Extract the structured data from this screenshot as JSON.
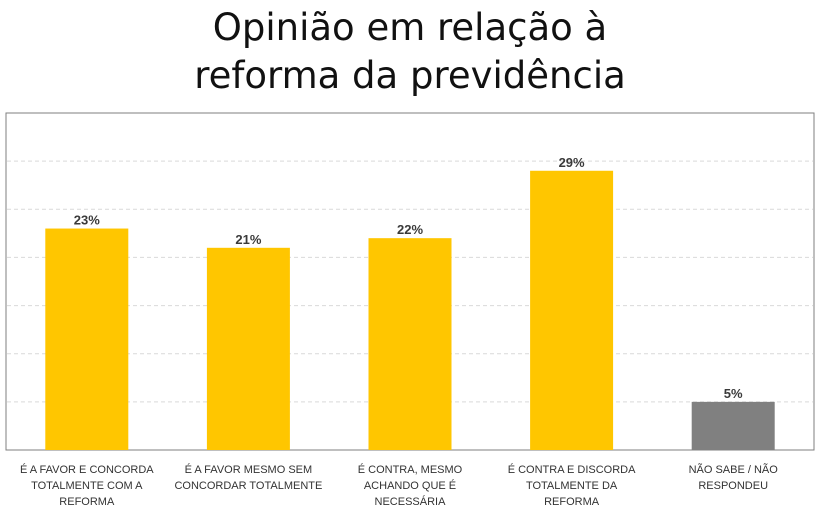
{
  "chart_data": {
    "type": "bar",
    "title_lines": [
      "Opinião em relação à",
      "reforma da previdência"
    ],
    "categories": [
      [
        "É A FAVOR  E CONCORDA",
        "TOTALMENTE COM A",
        "REFORMA"
      ],
      [
        "É A FAVOR MESMO SEM",
        "CONCORDAR TOTALMENTE"
      ],
      [
        "É CONTRA, MESMO",
        "ACHANDO QUE É",
        "NECESSÁRIA"
      ],
      [
        "É CONTRA E  DISCORDA",
        "TOTALMENTE DA",
        "REFORMA"
      ],
      [
        "NÃO SABE / NÃO",
        "RESPONDEU"
      ]
    ],
    "values": [
      23,
      21,
      22,
      29,
      5
    ],
    "data_labels": [
      "23%",
      "21%",
      "22%",
      "29%",
      "5%"
    ],
    "colors": [
      "#FFC600",
      "#FFC600",
      "#FFC600",
      "#FFC600",
      "#808080"
    ],
    "ylim": [
      0,
      35
    ],
    "grid": true,
    "xlabel": "",
    "ylabel": ""
  }
}
